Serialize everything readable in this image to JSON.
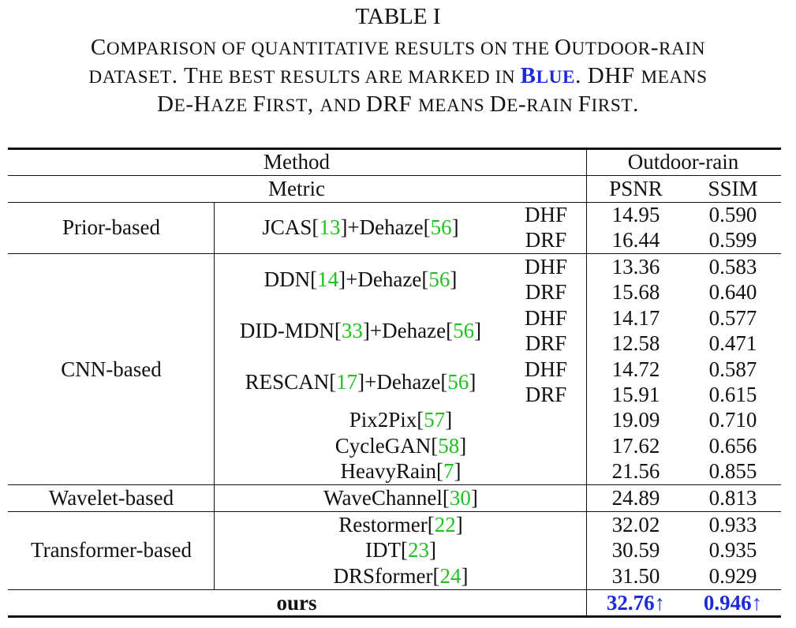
{
  "caption": {
    "table_number": "TABLE I",
    "line1": [
      {
        "t": "C"
      },
      {
        "t": "OMPARISON OF QUANTITATIVE RESULTS ON THE ",
        "sc": true
      },
      {
        "t": "O"
      },
      {
        "t": "UTDOOR",
        "sc": true
      },
      {
        "t": "-"
      },
      {
        "t": "RAIN",
        "sc": true
      }
    ],
    "line2": [
      {
        "t": "DATASET",
        "sc": true
      },
      {
        "t": ". T"
      },
      {
        "t": "HE BEST RESULTS ARE MARKED IN ",
        "sc": true
      },
      {
        "t": "B",
        "blue": true
      },
      {
        "t": "LUE",
        "sc": true,
        "blue": true
      },
      {
        "t": ". DHF "
      },
      {
        "t": "MEANS",
        "sc": true
      }
    ],
    "line3": [
      {
        "t": "D"
      },
      {
        "t": "E",
        "sc": true
      },
      {
        "t": "-H"
      },
      {
        "t": "AZE ",
        "sc": true
      },
      {
        "t": "F"
      },
      {
        "t": "IRST",
        "sc": true
      },
      {
        "t": ", "
      },
      {
        "t": "AND ",
        "sc": true
      },
      {
        "t": "DRF "
      },
      {
        "t": "MEANS ",
        "sc": true
      },
      {
        "t": "D"
      },
      {
        "t": "E",
        "sc": true
      },
      {
        "t": "-"
      },
      {
        "t": "RAIN ",
        "sc": true
      },
      {
        "t": "F"
      },
      {
        "t": "IRST",
        "sc": true
      },
      {
        "t": "."
      }
    ]
  },
  "table": {
    "header_method": "Method",
    "header_dataset": "Outdoor-rain",
    "header_metric": "Metric",
    "header_psnr": "PSNR",
    "header_ssim": "SSIM",
    "groups": [
      {
        "name": "Prior-based"
      },
      {
        "name": "CNN-based"
      },
      {
        "name": "Wavelet-based"
      },
      {
        "name": "Transformer-based"
      }
    ],
    "methods": [
      {
        "parts": [
          {
            "t": "JCAS["
          },
          {
            "t": "13",
            "ref": true
          },
          {
            "t": "]+Dehaze["
          },
          {
            "t": "56",
            "ref": true
          },
          {
            "t": "]"
          }
        ]
      },
      {
        "parts": [
          {
            "t": "DDN["
          },
          {
            "t": "14",
            "ref": true
          },
          {
            "t": "]+Dehaze["
          },
          {
            "t": "56",
            "ref": true
          },
          {
            "t": "]"
          }
        ]
      },
      {
        "parts": [
          {
            "t": "DID-MDN["
          },
          {
            "t": "33",
            "ref": true
          },
          {
            "t": "]+Dehaze["
          },
          {
            "t": "56",
            "ref": true
          },
          {
            "t": "]"
          }
        ]
      },
      {
        "parts": [
          {
            "t": "RESCAN["
          },
          {
            "t": "17",
            "ref": true
          },
          {
            "t": "]+Dehaze["
          },
          {
            "t": "56",
            "ref": true
          },
          {
            "t": "]"
          }
        ]
      },
      {
        "parts": [
          {
            "t": "Pix2Pix["
          },
          {
            "t": "57",
            "ref": true
          },
          {
            "t": "]"
          }
        ]
      },
      {
        "parts": [
          {
            "t": "CycleGAN["
          },
          {
            "t": "58",
            "ref": true
          },
          {
            "t": "]"
          }
        ]
      },
      {
        "parts": [
          {
            "t": "HeavyRain["
          },
          {
            "t": "7",
            "ref": true
          },
          {
            "t": "]"
          }
        ]
      },
      {
        "parts": [
          {
            "t": "WaveChannel["
          },
          {
            "t": "30",
            "ref": true
          },
          {
            "t": "]"
          }
        ]
      },
      {
        "parts": [
          {
            "t": "Restormer["
          },
          {
            "t": "22",
            "ref": true
          },
          {
            "t": "]"
          }
        ]
      },
      {
        "parts": [
          {
            "t": "IDT["
          },
          {
            "t": "23",
            "ref": true
          },
          {
            "t": "]"
          }
        ]
      },
      {
        "parts": [
          {
            "t": "DRSformer["
          },
          {
            "t": "24",
            "ref": true
          },
          {
            "t": "]"
          }
        ]
      }
    ],
    "rows": [
      {
        "order": "DHF",
        "psnr": "14.95",
        "ssim": "0.590"
      },
      {
        "order": "DRF",
        "psnr": "16.44",
        "ssim": "0.599"
      },
      {
        "order": "DHF",
        "psnr": "13.36",
        "ssim": "0.583"
      },
      {
        "order": "DRF",
        "psnr": "15.68",
        "ssim": "0.640"
      },
      {
        "order": "DHF",
        "psnr": "14.17",
        "ssim": "0.577"
      },
      {
        "order": "DRF",
        "psnr": "12.58",
        "ssim": "0.471"
      },
      {
        "order": "DHF",
        "psnr": "14.72",
        "ssim": "0.587"
      },
      {
        "order": "DRF",
        "psnr": "15.91",
        "ssim": "0.615"
      },
      {
        "order": "",
        "psnr": "19.09",
        "ssim": "0.710"
      },
      {
        "order": "",
        "psnr": "17.62",
        "ssim": "0.656"
      },
      {
        "order": "",
        "psnr": "21.56",
        "ssim": "0.855"
      },
      {
        "order": "",
        "psnr": "24.89",
        "ssim": "0.813"
      },
      {
        "order": "",
        "psnr": "32.02",
        "ssim": "0.933"
      },
      {
        "order": "",
        "psnr": "30.59",
        "ssim": "0.935"
      },
      {
        "order": "",
        "psnr": "31.50",
        "ssim": "0.929"
      }
    ],
    "ours": {
      "label": "ours",
      "psnr": "32.76↑",
      "ssim": "0.946↑"
    }
  },
  "colors": {
    "best": "#1d2bd9",
    "citation": "#20c020"
  }
}
